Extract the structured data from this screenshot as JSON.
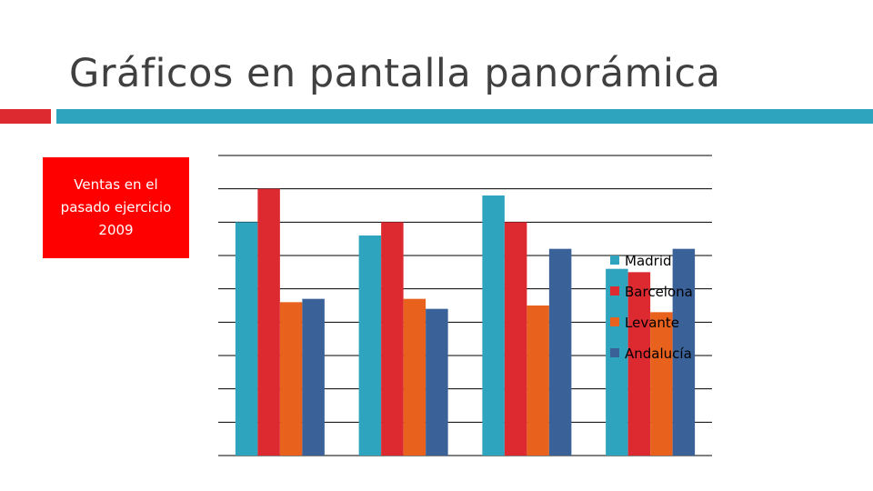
{
  "slide": {
    "title": "Gráficos en pantalla panorámica",
    "callout": "Ventas en el pasado ejercicio 2009",
    "colors": {
      "accent_red": "#dd2a31",
      "accent_blue": "#2ea4bf",
      "callout_bg": "#ff0000",
      "title_text": "#404040"
    }
  },
  "chart_data": {
    "type": "bar",
    "categories": [
      "",
      "",
      "",
      ""
    ],
    "series": [
      {
        "name": "Madrid",
        "color": "#2ea4bf",
        "values": [
          7.0,
          6.6,
          7.8,
          5.6
        ]
      },
      {
        "name": "Barcelona",
        "color": "#dd2a31",
        "values": [
          8.0,
          7.0,
          7.0,
          5.5
        ]
      },
      {
        "name": "Levante",
        "color": "#e8621e",
        "values": [
          4.6,
          4.7,
          4.5,
          4.3
        ]
      },
      {
        "name": "Andalucía",
        "color": "#3a6198",
        "values": [
          4.7,
          4.4,
          6.2,
          6.2
        ]
      }
    ],
    "ylim": [
      0,
      9
    ],
    "grid": true,
    "legend": "right"
  }
}
